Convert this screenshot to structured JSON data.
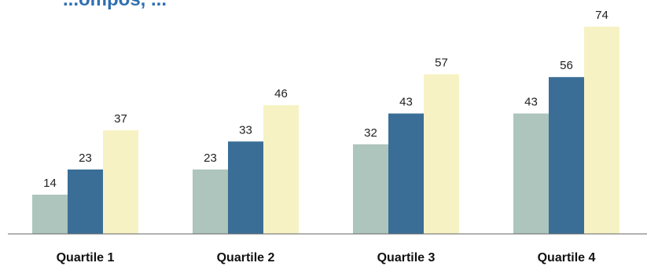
{
  "chart_data": {
    "type": "bar",
    "title": "...ompos, ...",
    "categories": [
      "Quartile 1",
      "Quartile 2",
      "Quartile 3",
      "Quartile 4"
    ],
    "series": [
      {
        "values": [
          14,
          23,
          32,
          43
        ],
        "color": "#adc5bc"
      },
      {
        "values": [
          23,
          33,
          43,
          56
        ],
        "color": "#3a6e96"
      },
      {
        "values": [
          37,
          46,
          57,
          74
        ],
        "color": "#f7f2c4"
      }
    ],
    "ylim": [
      0,
      74
    ],
    "grid": false,
    "legend": "none"
  }
}
